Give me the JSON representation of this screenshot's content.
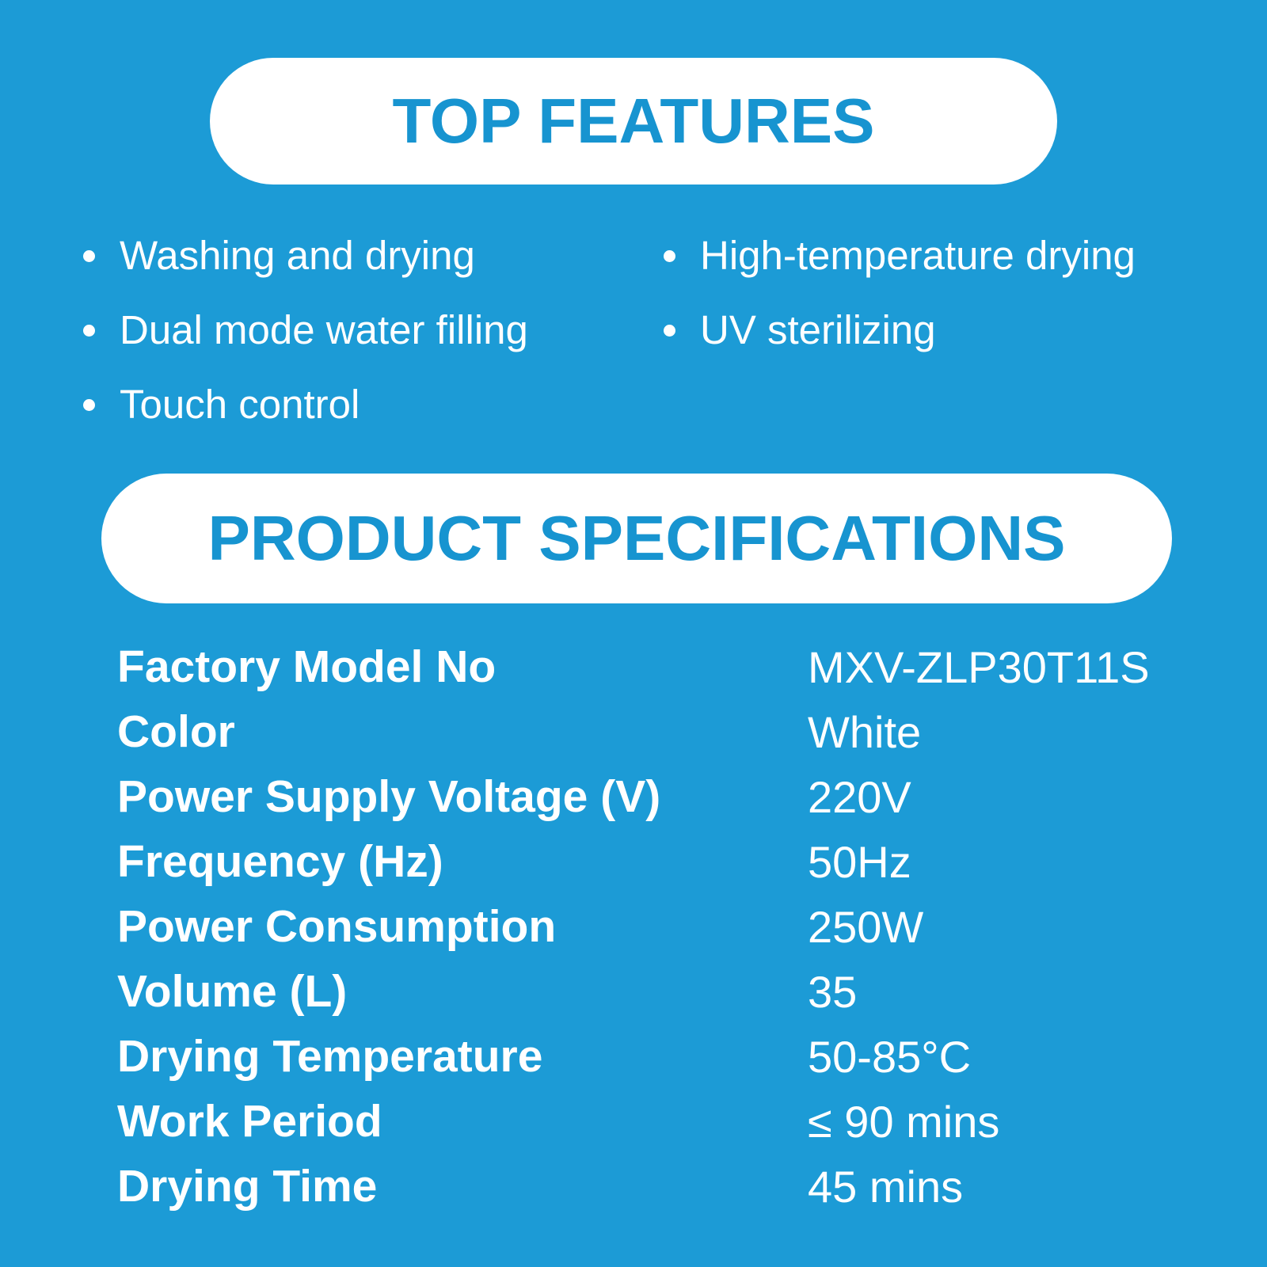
{
  "colors": {
    "background": "#1C9BD6",
    "accent": "#1794D0",
    "pill_bg": "#FFFFFF",
    "body_text": "#FFFFFF"
  },
  "top_features": {
    "title": "TOP FEATURES",
    "columns": [
      [
        "Washing and drying",
        "Dual mode water filling",
        "Touch control"
      ],
      [
        "High-temperature drying",
        "UV sterilizing"
      ]
    ]
  },
  "specifications": {
    "title": "PRODUCT SPECIFICATIONS",
    "rows": [
      {
        "label": "Factory Model No",
        "value": "MXV-ZLP30T11S"
      },
      {
        "label": "Color",
        "value": "White"
      },
      {
        "label": "Power Supply Voltage (V)",
        "value": "220V"
      },
      {
        "label": "Frequency (Hz)",
        "value": "50Hz"
      },
      {
        "label": "Power Consumption",
        "value": "250W"
      },
      {
        "label": "Volume (L)",
        "value": "35"
      },
      {
        "label": "Drying Temperature",
        "value": "50-85°C"
      },
      {
        "label": "Work Period",
        "value": "≤ 90 mins"
      },
      {
        "label": "Drying Time",
        "value": "45 mins"
      }
    ]
  }
}
